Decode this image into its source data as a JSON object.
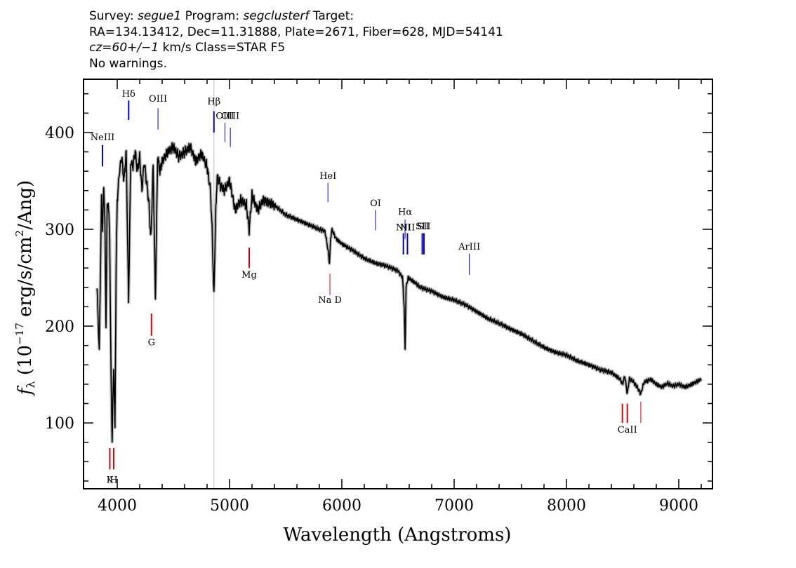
{
  "header": {
    "line1_prefix": "Survey: ",
    "survey": "segue1",
    "line1_mid": " Program: ",
    "program": "segclusterf",
    "line1_suffix": " Target:",
    "line2": "RA=134.13412, Dec=11.31888, Plate=2671, Fiber=628, MJD=54141",
    "cz": "cz=60+/−1",
    "line3_suffix": " km/s Class=STAR F5",
    "line4": "No warnings."
  },
  "chart_data": {
    "type": "line",
    "title": "",
    "xlabel": "Wavelength (Angstroms)",
    "ylabel": "fλ (10⁻¹⁷ erg/s/cm²/Ang)",
    "ylabel_parts": {
      "f": "f",
      "sub": "λ",
      "a": " (10",
      "exp1": "−17",
      "b": " erg/s/cm",
      "exp2": "2",
      "c": "/Ang)"
    },
    "xlim": [
      3700,
      9300
    ],
    "ylim": [
      32,
      455
    ],
    "x_ticks": [
      4000,
      5000,
      6000,
      7000,
      8000,
      9000
    ],
    "x_tick_labels": [
      "4000",
      "5000",
      "6000",
      "7000",
      "8000",
      "9000"
    ],
    "y_ticks": [
      100,
      200,
      300,
      400
    ],
    "y_tick_labels": [
      "100",
      "200",
      "300",
      "400"
    ],
    "grid": false,
    "reference_line_x": 4861,
    "series": [
      {
        "color": "#000000",
        "error_color": "#bbbbbb",
        "x": [
          3820,
          3840,
          3860,
          3870,
          3880,
          3890,
          3900,
          3910,
          3920,
          3933,
          3945,
          3955,
          3968,
          3980,
          3990,
          4000,
          4020,
          4040,
          4060,
          4080,
          4101,
          4120,
          4140,
          4160,
          4180,
          4200,
          4220,
          4240,
          4260,
          4280,
          4300,
          4320,
          4340,
          4360,
          4380,
          4400,
          4450,
          4500,
          4550,
          4600,
          4650,
          4700,
          4750,
          4800,
          4830,
          4845,
          4861,
          4875,
          4890,
          4920,
          4950,
          5000,
          5050,
          5100,
          5150,
          5175,
          5200,
          5250,
          5300,
          5400,
          5500,
          5600,
          5700,
          5800,
          5850,
          5875,
          5890,
          5900,
          5910,
          5950,
          6000,
          6100,
          6200,
          6300,
          6400,
          6500,
          6540,
          6555,
          6563,
          6572,
          6590,
          6650,
          6700,
          6800,
          6900,
          7000,
          7100,
          7200,
          7300,
          7400,
          7500,
          7600,
          7700,
          7800,
          7900,
          8000,
          8100,
          8200,
          8300,
          8400,
          8480,
          8498,
          8520,
          8542,
          8560,
          8600,
          8640,
          8662,
          8690,
          8750,
          8800,
          8850,
          8900,
          8950,
          9000,
          9050,
          9100,
          9150,
          9200
        ],
        "y": [
          240,
          175,
          330,
          300,
          345,
          310,
          200,
          320,
          330,
          290,
          150,
          80,
          160,
          95,
          260,
          330,
          360,
          375,
          350,
          380,
          225,
          370,
          365,
          380,
          360,
          375,
          340,
          370,
          350,
          330,
          290,
          365,
          230,
          375,
          360,
          370,
          380,
          385,
          375,
          380,
          385,
          370,
          378,
          365,
          340,
          300,
          230,
          310,
          355,
          345,
          340,
          350,
          320,
          330,
          325,
          300,
          335,
          320,
          330,
          325,
          315,
          310,
          305,
          300,
          298,
          280,
          265,
          290,
          300,
          290,
          285,
          278,
          270,
          265,
          262,
          257,
          250,
          220,
          175,
          240,
          250,
          245,
          240,
          236,
          230,
          227,
          222,
          215,
          208,
          203,
          197,
          192,
          185,
          178,
          173,
          170,
          164,
          160,
          155,
          152,
          145,
          140,
          148,
          130,
          146,
          142,
          135,
          130,
          142,
          145,
          140,
          137,
          141,
          138,
          140,
          137,
          139,
          142,
          145
        ]
      }
    ],
    "emission_lines": [
      {
        "label": "NeIII",
        "x": 3869,
        "color": "#0000cc",
        "lw": 2,
        "y0": 365,
        "y1": 387,
        "label_y": 392
      },
      {
        "label": "Hδ",
        "x": 4102,
        "color": "#0000cc",
        "lw": 2,
        "y0": 413,
        "y1": 433,
        "label_y": 437
      },
      {
        "label": "OIII",
        "x": 4363,
        "color": "#0000cc",
        "lw": 1,
        "y0": 403,
        "y1": 425,
        "label_y": 432
      },
      {
        "label": "Hβ",
        "x": 4861,
        "color": "#0000cc",
        "lw": 2,
        "y0": 400,
        "y1": 422,
        "label_y": 429
      },
      {
        "label": "OIII",
        "x": 4959,
        "color": "#0000cc",
        "lw": 1,
        "y0": 390,
        "y1": 410,
        "label_y": 414
      },
      {
        "label": "OIII",
        "x": 5007,
        "color": "#0000cc",
        "lw": 1,
        "y0": 385,
        "y1": 405,
        "label_y": 414
      },
      {
        "label": "HeI",
        "x": 5876,
        "color": "#0000cc",
        "lw": 1,
        "y0": 328,
        "y1": 348,
        "label_y": 352
      },
      {
        "label": "OI",
        "x": 6300,
        "color": "#0000cc",
        "lw": 1,
        "y0": 299,
        "y1": 320,
        "label_y": 324
      },
      {
        "label": "NII",
        "x": 6548,
        "color": "#0000cc",
        "lw": 2,
        "y0": 274,
        "y1": 296,
        "label_y": 299
      },
      {
        "label": "Hα",
        "x": 6563,
        "color": "#0000cc",
        "lw": 1,
        "y0": 290,
        "y1": 310,
        "label_y": 315
      },
      {
        "label": "NII",
        "x": 6584,
        "color": "#0000cc",
        "lw": 2,
        "y0": 274,
        "y1": 296,
        "label_y": 299
      },
      {
        "label": "SII",
        "x": 6716,
        "color": "#0000cc",
        "lw": 2,
        "y0": 274,
        "y1": 296,
        "label_y": 300
      },
      {
        "label": "SII",
        "x": 6731,
        "color": "#0000cc",
        "lw": 2,
        "y0": 274,
        "y1": 296,
        "label_y": 300
      },
      {
        "label": "ArIII",
        "x": 7135,
        "color": "#0000cc",
        "lw": 1,
        "y0": 253,
        "y1": 275,
        "label_y": 279
      }
    ],
    "absorption_lines": [
      {
        "label": "K",
        "x": 3934,
        "color": "#dd0000",
        "lw": 2,
        "y0": 52,
        "y1": 74,
        "label_y": 38
      },
      {
        "label": "H",
        "x": 3969,
        "color": "#dd0000",
        "lw": 2,
        "y0": 52,
        "y1": 74,
        "label_y": 38
      },
      {
        "label": "G",
        "x": 4305,
        "color": "#dd0000",
        "lw": 2,
        "y0": 190,
        "y1": 213,
        "label_y": 180
      },
      {
        "label": "Mg",
        "x": 5175,
        "color": "#dd0000",
        "lw": 2,
        "y0": 260,
        "y1": 281,
        "label_y": 250
      },
      {
        "label": "Na D",
        "x": 5894,
        "color": "#dd0000",
        "lw": 1,
        "y0": 232,
        "y1": 254,
        "label_y": 224
      },
      {
        "label": "",
        "x": 8498,
        "color": "#dd0000",
        "lw": 2,
        "y0": 100,
        "y1": 120,
        "label_y": 0
      },
      {
        "label": "CaII",
        "x": 8542,
        "color": "#dd0000",
        "lw": 2,
        "y0": 100,
        "y1": 120,
        "label_y": 90
      },
      {
        "label": "",
        "x": 8662,
        "color": "#dd0000",
        "lw": 1,
        "y0": 100,
        "y1": 122,
        "label_y": 0
      }
    ]
  }
}
